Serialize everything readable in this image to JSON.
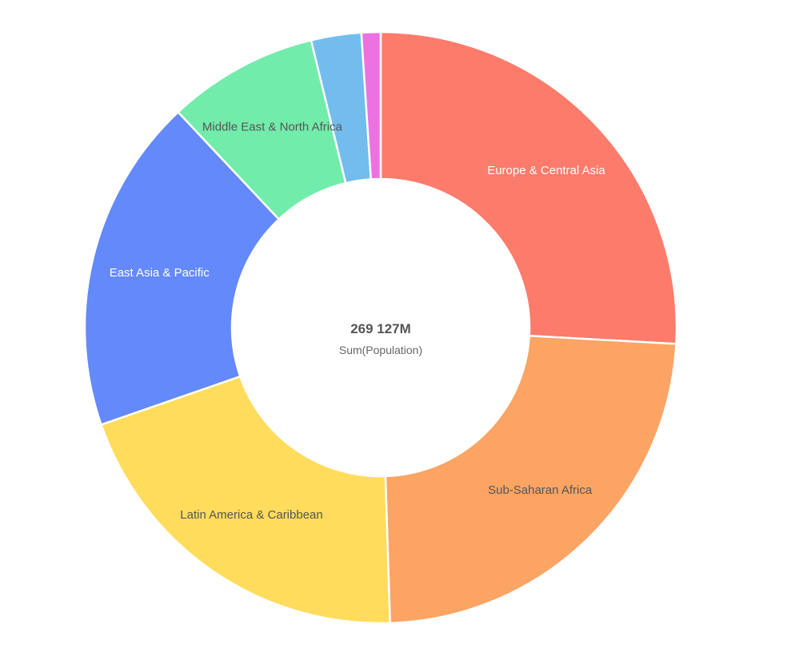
{
  "chart_data": {
    "type": "pie",
    "variant": "donut",
    "measure": "Sum(Population)",
    "total_label": "269 127M",
    "categories": [
      "Europe & Central Asia",
      "Sub-Saharan Africa",
      "Latin America & Caribbean",
      "East Asia & Pacific",
      "Middle East & North Africa",
      "",
      ""
    ],
    "values": [
      69640,
      63570,
      54310,
      49310,
      22130,
      7360,
      2807
    ],
    "colors": [
      "#fd7b6b",
      "#fba464",
      "#ffdc5c",
      "#6389fb",
      "#72ecaa",
      "#72bdee",
      "#ec72e1"
    ],
    "label_colors": [
      "#ffffff",
      "#555555",
      "#555555",
      "#ffffff",
      "#555555",
      "#555555",
      "#555555"
    ],
    "legend": "none"
  },
  "center": {
    "value": "269 127M",
    "caption": "Sum(Population)"
  }
}
